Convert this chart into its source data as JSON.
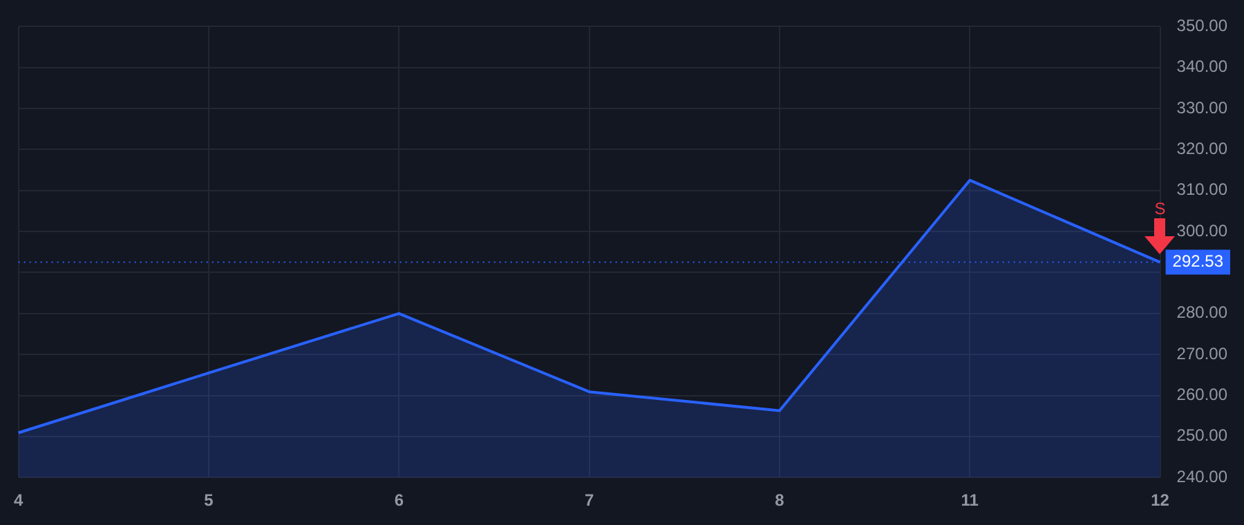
{
  "chart_data": {
    "type": "area",
    "categories": [
      "4",
      "5",
      "6",
      "7",
      "8",
      "11",
      "12"
    ],
    "series": [
      {
        "color": "#2962ff",
        "values": [
          250.9,
          265.5,
          280.0,
          260.9,
          256.3,
          312.5,
          292.5
        ]
      }
    ],
    "ylim": [
      240,
      350
    ],
    "yticks": [
      {
        "value": 240,
        "label": "240.00"
      },
      {
        "value": 250,
        "label": "250.00"
      },
      {
        "value": 260,
        "label": "260.00"
      },
      {
        "value": 270,
        "label": "270.00"
      },
      {
        "value": 280,
        "label": "280.00"
      },
      {
        "value": 290,
        "label": null
      },
      {
        "value": 300,
        "label": "300.00"
      },
      {
        "value": 310,
        "label": "310.00"
      },
      {
        "value": 320,
        "label": "320.00"
      },
      {
        "value": 330,
        "label": "330.00"
      },
      {
        "value": 340,
        "label": "340.00"
      },
      {
        "value": 350,
        "label": "350.00"
      }
    ],
    "ref_lines": [
      {
        "axis": "y",
        "value": 292.53,
        "label": "292.53",
        "color": "#2962ff",
        "line_style": "dotted"
      }
    ],
    "annotations": [
      {
        "text": "S",
        "x": "12",
        "y": 292.53
      }
    ],
    "grid": true,
    "legend": false,
    "marker": "none",
    "line_style": "solid"
  }
}
